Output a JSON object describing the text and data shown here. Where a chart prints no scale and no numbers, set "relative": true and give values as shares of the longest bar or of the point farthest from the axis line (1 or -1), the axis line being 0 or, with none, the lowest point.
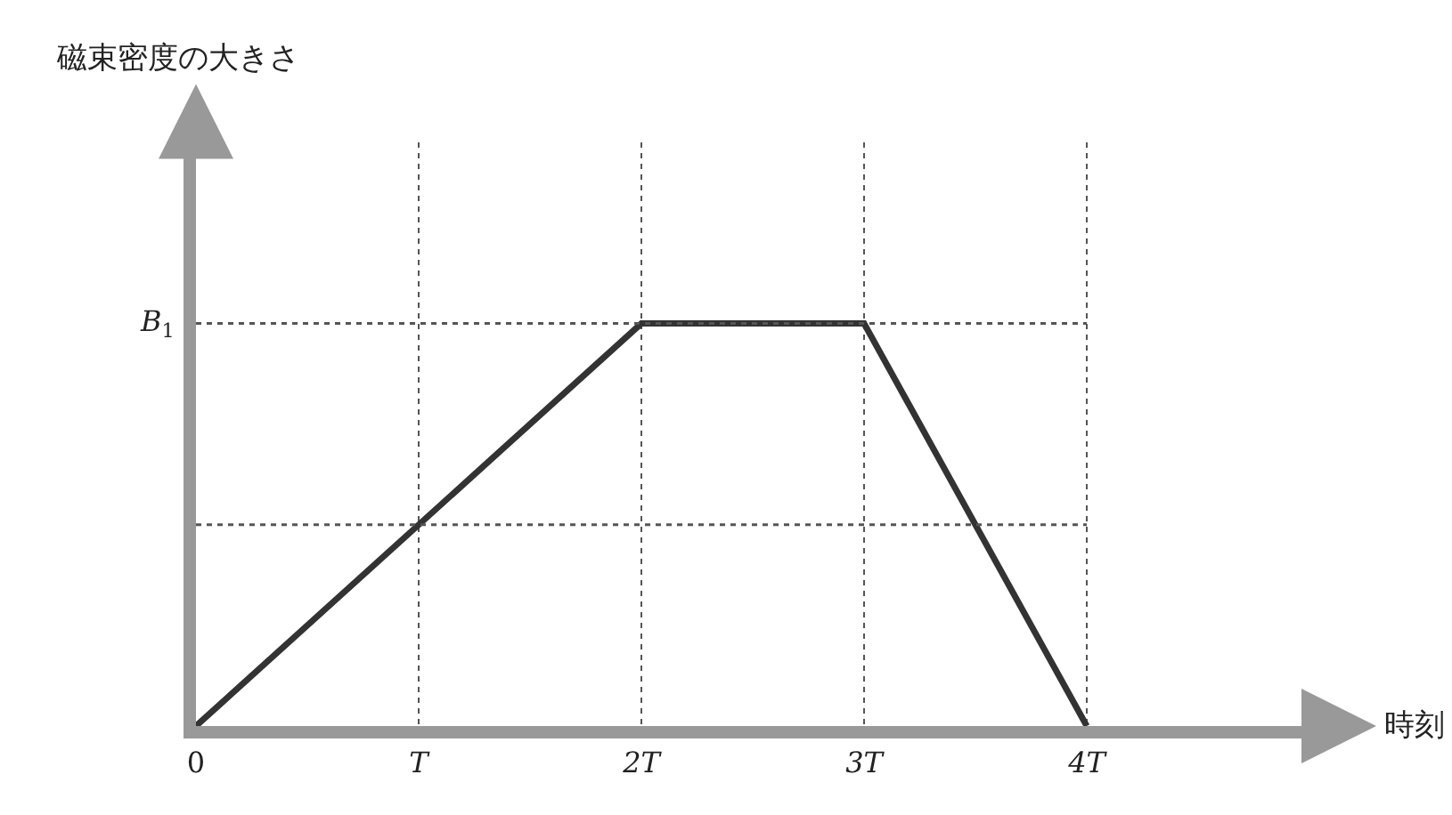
{
  "chart_data": {
    "type": "line",
    "xlabel": "時刻",
    "annotations": [
      "磁束密度の大きさ"
    ],
    "relative": true,
    "x": [
      0,
      2,
      3,
      4
    ],
    "series": [
      {
        "color": "#333333",
        "values": [
          0,
          1,
          1,
          0
        ]
      }
    ],
    "xlim": [
      0,
      5
    ],
    "xticks": [
      0,
      {
        "value": 1,
        "label": "T"
      },
      {
        "value": 2,
        "label": "2T"
      },
      {
        "value": 3,
        "label": "3T"
      },
      {
        "value": 4,
        "label": "4T"
      }
    ],
    "ref_lines": [
      {
        "axis": "y",
        "value": 1,
        "label": "B$_{1}$",
        "line_style": "dotted"
      },
      {
        "axis": "y",
        "value": 0.5,
        "label": null,
        "line_style": "dotted"
      }
    ],
    "grid": "x",
    "line_style": "solid",
    "marker": "none",
    "legend": false
  }
}
